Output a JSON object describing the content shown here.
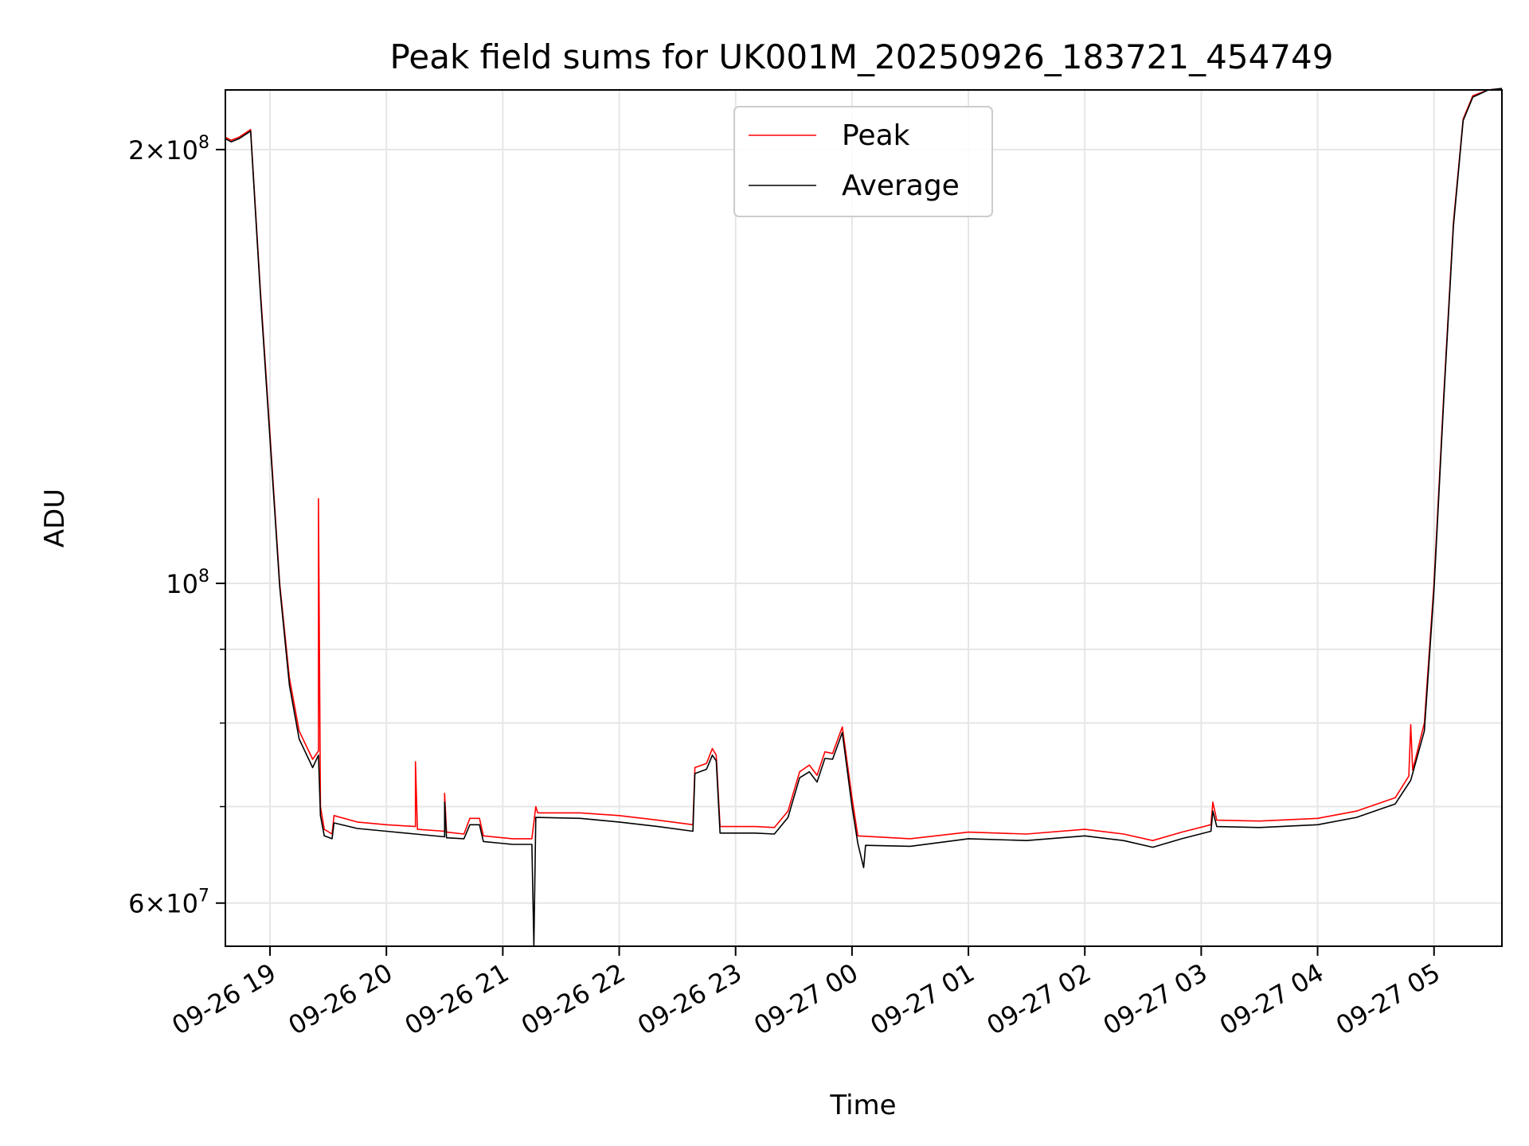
{
  "chart_data": {
    "type": "line",
    "title": "Peak field sums for UK001M_20250926_183721_454749",
    "xlabel": "Time",
    "ylabel": "ADU",
    "y_scale": "log",
    "xlim": [
      "2025-09-26 18:37",
      "2025-09-27 05:35"
    ],
    "ylim": [
      56000000,
      220000000
    ],
    "grid": true,
    "legend_position": "top-center",
    "x_ticks": [
      {
        "t": "2025-09-26 19:00",
        "label": "09-26 19"
      },
      {
        "t": "2025-09-26 20:00",
        "label": "09-26 20"
      },
      {
        "t": "2025-09-26 21:00",
        "label": "09-26 21"
      },
      {
        "t": "2025-09-26 22:00",
        "label": "09-26 22"
      },
      {
        "t": "2025-09-26 23:00",
        "label": "09-26 23"
      },
      {
        "t": "2025-09-27 00:00",
        "label": "09-27 00"
      },
      {
        "t": "2025-09-27 01:00",
        "label": "09-27 01"
      },
      {
        "t": "2025-09-27 02:00",
        "label": "09-27 02"
      },
      {
        "t": "2025-09-27 03:00",
        "label": "09-27 03"
      },
      {
        "t": "2025-09-27 04:00",
        "label": "09-27 04"
      },
      {
        "t": "2025-09-27 05:00",
        "label": "09-27 05"
      }
    ],
    "y_ticks_major": [
      {
        "v": 60000000,
        "mant": "6",
        "exp": "7"
      },
      {
        "v": 100000000,
        "mant": "",
        "exp": "8"
      },
      {
        "v": 200000000,
        "mant": "2",
        "exp": "8"
      }
    ],
    "y_ticks_minor": [
      70000000,
      80000000,
      90000000
    ],
    "series": [
      {
        "name": "Peak",
        "color": "#ff0000",
        "points": [
          [
            "2025-09-26 18:37",
            204000000
          ],
          [
            "2025-09-26 18:40",
            203000000
          ],
          [
            "2025-09-26 18:44",
            204000000
          ],
          [
            "2025-09-26 18:50",
            206500000
          ],
          [
            "2025-09-26 18:55",
            160000000
          ],
          [
            "2025-09-26 19:00",
            127000000
          ],
          [
            "2025-09-26 19:05",
            100000000
          ],
          [
            "2025-09-26 19:10",
            86000000
          ],
          [
            "2025-09-26 19:15",
            79000000
          ],
          [
            "2025-09-26 19:22",
            75500000
          ],
          [
            "2025-09-26 19:25",
            76500000
          ],
          [
            "2025-09-26 19:25",
            114500000
          ],
          [
            "2025-09-26 19:26",
            70000000
          ],
          [
            "2025-09-26 19:28",
            67500000
          ],
          [
            "2025-09-26 19:32",
            67000000
          ],
          [
            "2025-09-26 19:33",
            69000000
          ],
          [
            "2025-09-26 19:45",
            68300000
          ],
          [
            "2025-09-26 20:00",
            68000000
          ],
          [
            "2025-09-26 20:15",
            67800000
          ],
          [
            "2025-09-26 20:15",
            75200000
          ],
          [
            "2025-09-26 20:16",
            67500000
          ],
          [
            "2025-09-26 20:30",
            67300000
          ],
          [
            "2025-09-26 20:30",
            71500000
          ],
          [
            "2025-09-26 20:31",
            67200000
          ],
          [
            "2025-09-26 20:40",
            67000000
          ],
          [
            "2025-09-26 20:43",
            68700000
          ],
          [
            "2025-09-26 20:48",
            68700000
          ],
          [
            "2025-09-26 20:50",
            66800000
          ],
          [
            "2025-09-26 21:05",
            66500000
          ],
          [
            "2025-09-26 21:15",
            66500000
          ],
          [
            "2025-09-26 21:17",
            70000000
          ],
          [
            "2025-09-26 21:18",
            69300000
          ],
          [
            "2025-09-26 21:40",
            69300000
          ],
          [
            "2025-09-26 22:00",
            69000000
          ],
          [
            "2025-09-26 22:20",
            68500000
          ],
          [
            "2025-09-26 22:38",
            68000000
          ],
          [
            "2025-09-26 22:39",
            74500000
          ],
          [
            "2025-09-26 22:45",
            75000000
          ],
          [
            "2025-09-26 22:48",
            76800000
          ],
          [
            "2025-09-26 22:50",
            76000000
          ],
          [
            "2025-09-26 22:52",
            67800000
          ],
          [
            "2025-09-26 23:10",
            67800000
          ],
          [
            "2025-09-26 23:20",
            67700000
          ],
          [
            "2025-09-26 23:27",
            69500000
          ],
          [
            "2025-09-26 23:33",
            74000000
          ],
          [
            "2025-09-26 23:38",
            74800000
          ],
          [
            "2025-09-26 23:42",
            73600000
          ],
          [
            "2025-09-26 23:46",
            76400000
          ],
          [
            "2025-09-26 23:50",
            76200000
          ],
          [
            "2025-09-26 23:55",
            79500000
          ],
          [
            "2025-09-27 00:00",
            71000000
          ],
          [
            "2025-09-27 00:03",
            66800000
          ],
          [
            "2025-09-27 00:30",
            66500000
          ],
          [
            "2025-09-27 01:00",
            67200000
          ],
          [
            "2025-09-27 01:30",
            67000000
          ],
          [
            "2025-09-27 02:00",
            67500000
          ],
          [
            "2025-09-27 02:20",
            67000000
          ],
          [
            "2025-09-27 02:35",
            66300000
          ],
          [
            "2025-09-27 02:50",
            67200000
          ],
          [
            "2025-09-27 03:05",
            68000000
          ],
          [
            "2025-09-27 03:06",
            70500000
          ],
          [
            "2025-09-27 03:08",
            68500000
          ],
          [
            "2025-09-27 03:30",
            68400000
          ],
          [
            "2025-09-27 04:00",
            68700000
          ],
          [
            "2025-09-27 04:20",
            69500000
          ],
          [
            "2025-09-27 04:40",
            71000000
          ],
          [
            "2025-09-27 04:47",
            73500000
          ],
          [
            "2025-09-27 04:48",
            79800000
          ],
          [
            "2025-09-27 04:49",
            74200000
          ],
          [
            "2025-09-27 04:55",
            80000000
          ],
          [
            "2025-09-27 05:00",
            100000000
          ],
          [
            "2025-09-27 05:05",
            135000000
          ],
          [
            "2025-09-27 05:10",
            178000000
          ],
          [
            "2025-09-27 05:15",
            210000000
          ],
          [
            "2025-09-27 05:20",
            218000000
          ],
          [
            "2025-09-27 05:28",
            220000000
          ],
          [
            "2025-09-27 05:35",
            220500000
          ]
        ]
      },
      {
        "name": "Average",
        "color": "#000000",
        "points": [
          [
            "2025-09-26 18:37",
            203500000
          ],
          [
            "2025-09-26 18:40",
            202500000
          ],
          [
            "2025-09-26 18:44",
            203500000
          ],
          [
            "2025-09-26 18:50",
            206000000
          ],
          [
            "2025-09-26 18:55",
            159000000
          ],
          [
            "2025-09-26 19:00",
            126000000
          ],
          [
            "2025-09-26 19:05",
            99500000
          ],
          [
            "2025-09-26 19:10",
            85000000
          ],
          [
            "2025-09-26 19:15",
            78000000
          ],
          [
            "2025-09-26 19:22",
            74500000
          ],
          [
            "2025-09-26 19:25",
            76000000
          ],
          [
            "2025-09-26 19:26",
            69000000
          ],
          [
            "2025-09-26 19:28",
            66800000
          ],
          [
            "2025-09-26 19:32",
            66500000
          ],
          [
            "2025-09-26 19:33",
            68200000
          ],
          [
            "2025-09-26 19:45",
            67600000
          ],
          [
            "2025-09-26 20:00",
            67300000
          ],
          [
            "2025-09-26 20:15",
            67000000
          ],
          [
            "2025-09-26 20:30",
            66700000
          ],
          [
            "2025-09-26 20:30",
            70500000
          ],
          [
            "2025-09-26 20:31",
            66600000
          ],
          [
            "2025-09-26 20:40",
            66500000
          ],
          [
            "2025-09-26 20:43",
            68000000
          ],
          [
            "2025-09-26 20:48",
            68000000
          ],
          [
            "2025-09-26 20:50",
            66200000
          ],
          [
            "2025-09-26 21:05",
            65900000
          ],
          [
            "2025-09-26 21:15",
            65900000
          ],
          [
            "2025-09-26 21:16",
            56000000
          ],
          [
            "2025-09-26 21:17",
            68800000
          ],
          [
            "2025-09-26 21:40",
            68700000
          ],
          [
            "2025-09-26 22:00",
            68300000
          ],
          [
            "2025-09-26 22:20",
            67800000
          ],
          [
            "2025-09-26 22:38",
            67300000
          ],
          [
            "2025-09-26 22:39",
            73800000
          ],
          [
            "2025-09-26 22:45",
            74300000
          ],
          [
            "2025-09-26 22:48",
            76000000
          ],
          [
            "2025-09-26 22:50",
            75300000
          ],
          [
            "2025-09-26 22:52",
            67100000
          ],
          [
            "2025-09-26 23:10",
            67100000
          ],
          [
            "2025-09-26 23:20",
            67000000
          ],
          [
            "2025-09-26 23:27",
            68800000
          ],
          [
            "2025-09-26 23:33",
            73300000
          ],
          [
            "2025-09-26 23:38",
            74000000
          ],
          [
            "2025-09-26 23:42",
            72800000
          ],
          [
            "2025-09-26 23:46",
            75600000
          ],
          [
            "2025-09-26 23:50",
            75500000
          ],
          [
            "2025-09-26 23:55",
            78800000
          ],
          [
            "2025-09-27 00:00",
            70000000
          ],
          [
            "2025-09-27 00:03",
            66000000
          ],
          [
            "2025-09-27 00:06",
            63500000
          ],
          [
            "2025-09-27 00:07",
            65800000
          ],
          [
            "2025-09-27 00:30",
            65700000
          ],
          [
            "2025-09-27 01:00",
            66500000
          ],
          [
            "2025-09-27 01:30",
            66300000
          ],
          [
            "2025-09-27 02:00",
            66800000
          ],
          [
            "2025-09-27 02:20",
            66300000
          ],
          [
            "2025-09-27 02:35",
            65600000
          ],
          [
            "2025-09-27 02:50",
            66500000
          ],
          [
            "2025-09-27 03:05",
            67300000
          ],
          [
            "2025-09-27 03:06",
            69500000
          ],
          [
            "2025-09-27 03:08",
            67800000
          ],
          [
            "2025-09-27 03:30",
            67700000
          ],
          [
            "2025-09-27 04:00",
            68000000
          ],
          [
            "2025-09-27 04:20",
            68800000
          ],
          [
            "2025-09-27 04:40",
            70300000
          ],
          [
            "2025-09-27 04:48",
            73000000
          ],
          [
            "2025-09-27 04:55",
            79000000
          ],
          [
            "2025-09-27 05:00",
            99000000
          ],
          [
            "2025-09-27 05:05",
            134000000
          ],
          [
            "2025-09-27 05:10",
            177000000
          ],
          [
            "2025-09-27 05:15",
            209500000
          ],
          [
            "2025-09-27 05:20",
            217500000
          ],
          [
            "2025-09-27 05:28",
            220000000
          ],
          [
            "2025-09-27 05:35",
            220500000
          ]
        ]
      }
    ]
  }
}
